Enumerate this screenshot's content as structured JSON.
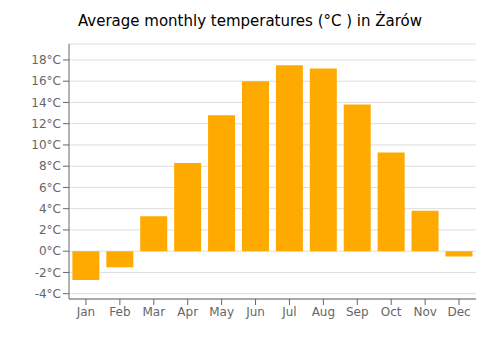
{
  "chart_data": {
    "type": "bar",
    "title": "Average monthly temperatures (°C ) in Żarów",
    "categories": [
      "Jan",
      "Feb",
      "Mar",
      "Apr",
      "May",
      "Jun",
      "Jul",
      "Aug",
      "Sep",
      "Oct",
      "Nov",
      "Dec"
    ],
    "values": [
      -2.7,
      -1.5,
      3.3,
      8.3,
      12.8,
      16.0,
      17.5,
      17.2,
      13.8,
      9.3,
      3.8,
      -0.5
    ],
    "color": "#FFAA00",
    "ylim": [
      -4.5,
      19.5
    ],
    "yticks": [
      {
        "value": -4,
        "label": "-4°C"
      },
      {
        "value": -2,
        "label": "-2°C"
      },
      {
        "value": 0,
        "label": "0°C"
      },
      {
        "value": 2,
        "label": "2°C"
      },
      {
        "value": 4,
        "label": "4°C"
      },
      {
        "value": 6,
        "label": "6°C"
      },
      {
        "value": 8,
        "label": "8°C"
      },
      {
        "value": 10,
        "label": "10°C"
      },
      {
        "value": 12,
        "label": "12°C"
      },
      {
        "value": 14,
        "label": "14°C"
      },
      {
        "value": 16,
        "label": "16°C"
      },
      {
        "value": 18,
        "label": "18°C"
      }
    ],
    "grid": true
  }
}
